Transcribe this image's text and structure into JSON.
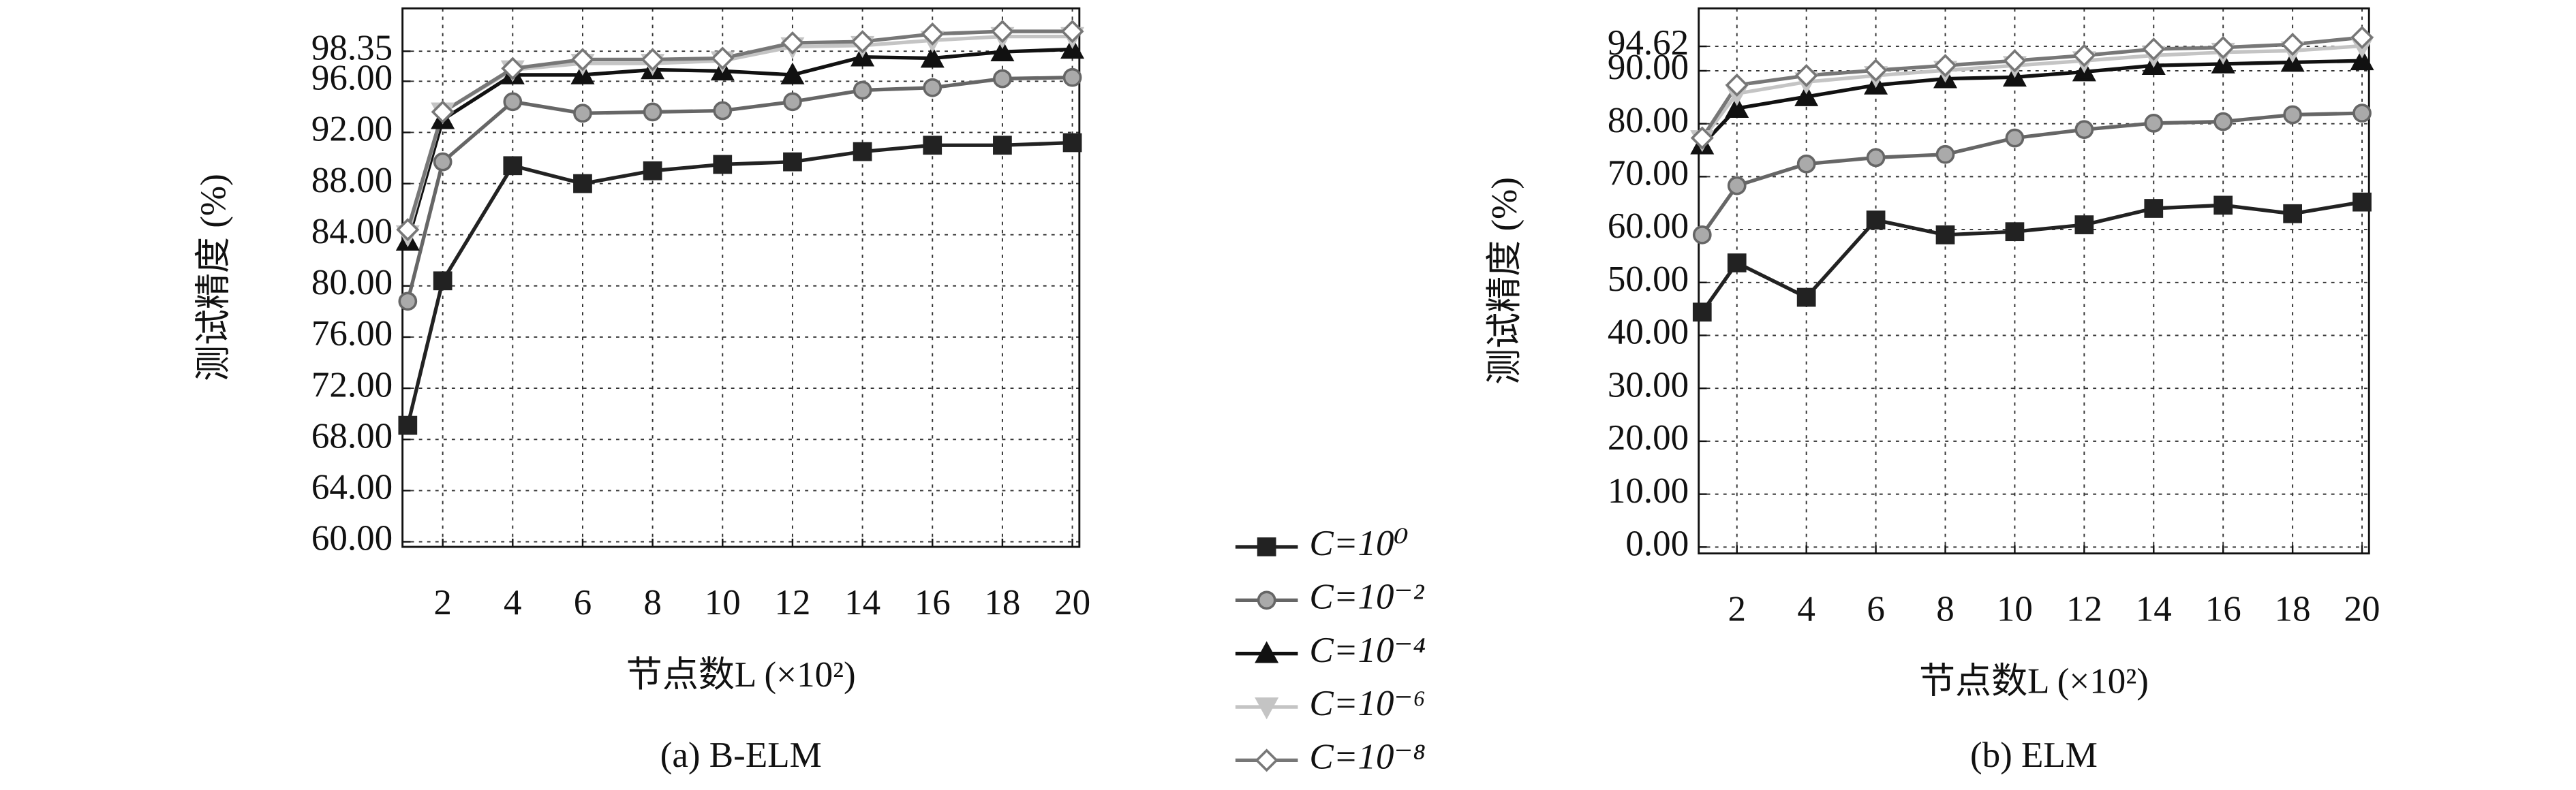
{
  "chart_data": [
    {
      "type": "line",
      "caption": "(a) B-ELM",
      "xlabel": "节点数L (×10²)",
      "ylabel": "测试精度 (%)",
      "x": [
        1,
        2,
        4,
        6,
        8,
        10,
        12,
        14,
        16,
        18,
        20
      ],
      "xlim": [
        0.85,
        20.2
      ],
      "xticks": [
        2,
        4,
        6,
        8,
        10,
        12,
        14,
        16,
        18,
        20
      ],
      "ylim": [
        59.6,
        101.7
      ],
      "yticks": [
        {
          "value": 60,
          "label": "60.00"
        },
        {
          "value": 64,
          "label": "64.00"
        },
        {
          "value": 68,
          "label": "68.00"
        },
        {
          "value": 72,
          "label": "72.00"
        },
        {
          "value": 76,
          "label": "76.00"
        },
        {
          "value": 80,
          "label": "80.00"
        },
        {
          "value": 84,
          "label": "84.00"
        },
        {
          "value": 88,
          "label": "88.00"
        },
        {
          "value": 92,
          "label": "92.00"
        },
        {
          "value": 96,
          "label": "96.00"
        },
        {
          "value": 98.35,
          "label": "98.35"
        }
      ],
      "grid": true,
      "series": [
        {
          "name": "C=10⁰",
          "color": "#222222",
          "marker": "square",
          "values": [
            69.1,
            80.4,
            89.4,
            88.0,
            89.0,
            89.5,
            89.7,
            90.5,
            91.0,
            91.0,
            91.2
          ]
        },
        {
          "name": "C=10⁻²",
          "color": "#666666",
          "marker": "circle",
          "values": [
            78.8,
            89.7,
            94.4,
            93.5,
            93.6,
            93.7,
            94.4,
            95.3,
            95.5,
            96.2,
            96.3
          ]
        },
        {
          "name": "C=10⁻⁴",
          "color": "#111111",
          "marker": "triangle",
          "values": [
            83.5,
            93.0,
            96.5,
            96.5,
            96.9,
            96.8,
            96.5,
            97.9,
            97.8,
            98.3,
            98.5
          ]
        },
        {
          "name": "C=10⁻⁶",
          "color": "#c4c4c4",
          "marker": "triangle-down",
          "values": [
            84.0,
            93.6,
            96.9,
            97.4,
            97.4,
            97.6,
            98.7,
            98.8,
            99.2,
            99.5,
            99.5
          ]
        },
        {
          "name": "C=10⁻⁸",
          "color": "#777777",
          "marker": "diamond",
          "values": [
            84.4,
            93.6,
            97.0,
            97.7,
            97.7,
            97.8,
            99.0,
            99.1,
            99.7,
            99.9,
            99.9
          ]
        }
      ]
    },
    {
      "type": "line",
      "caption": "(b) ELM",
      "xlabel": "节点数L (×10²)",
      "ylabel": "测试精度 (%)",
      "x": [
        1,
        2,
        4,
        6,
        8,
        10,
        12,
        14,
        16,
        18,
        20
      ],
      "xlim": [
        0.9,
        20.2
      ],
      "xticks": [
        2,
        4,
        6,
        8,
        10,
        12,
        14,
        16,
        18,
        20
      ],
      "ylim": [
        -1.2,
        101.8
      ],
      "yticks": [
        {
          "value": 0,
          "label": "0.00"
        },
        {
          "value": 10,
          "label": "10.00"
        },
        {
          "value": 20,
          "label": "20.00"
        },
        {
          "value": 30,
          "label": "30.00"
        },
        {
          "value": 40,
          "label": "40.00"
        },
        {
          "value": 50,
          "label": "50.00"
        },
        {
          "value": 60,
          "label": "60.00"
        },
        {
          "value": 70,
          "label": "70.00"
        },
        {
          "value": 80,
          "label": "80.00"
        },
        {
          "value": 90,
          "label": "90.00"
        },
        {
          "value": 94.62,
          "label": "94.62"
        }
      ],
      "grid": true,
      "series": [
        {
          "color": "#222222",
          "marker": "square",
          "values": [
            44.4,
            53.7,
            47.2,
            61.8,
            59.0,
            59.6,
            60.9,
            64.0,
            64.6,
            63.0,
            65.2
          ]
        },
        {
          "color": "#666666",
          "marker": "circle",
          "values": [
            59.0,
            68.3,
            72.4,
            73.6,
            74.2,
            77.3,
            78.9,
            80.1,
            80.4,
            81.7,
            82.0
          ]
        },
        {
          "color": "#111111",
          "marker": "triangle",
          "values": [
            76.0,
            82.9,
            85.1,
            87.3,
            88.5,
            88.8,
            89.8,
            91.0,
            91.3,
            91.6,
            91.9
          ]
        },
        {
          "color": "#c4c4c4",
          "marker": "triangle-down",
          "values": [
            77.0,
            85.7,
            87.9,
            89.1,
            90.1,
            91.0,
            91.9,
            92.9,
            93.5,
            93.8,
            94.7
          ]
        },
        {
          "color": "#777777",
          "marker": "diamond",
          "values": [
            77.3,
            87.3,
            89.1,
            90.1,
            91.0,
            91.9,
            92.9,
            94.1,
            94.4,
            95.0,
            96.3
          ]
        }
      ]
    }
  ]
}
